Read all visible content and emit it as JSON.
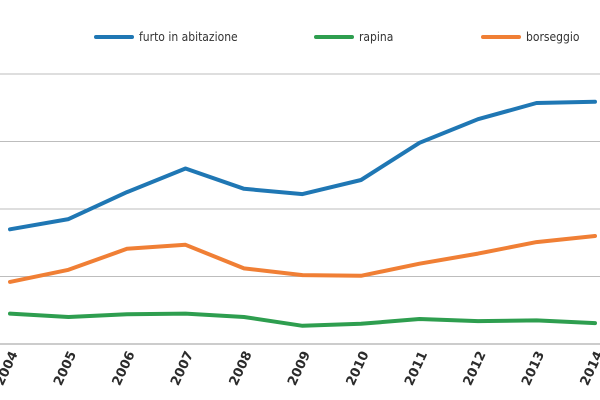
{
  "chart_data": {
    "type": "line",
    "categories": [
      "2004",
      "2005",
      "2006",
      "2007",
      "2008",
      "2009",
      "2010",
      "2011",
      "2012",
      "2013",
      "2014"
    ],
    "ylim": [
      0,
      6
    ],
    "grid": true,
    "legend": "top",
    "series": [
      {
        "name": "furto in abitazione",
        "color": "#1f77b4",
        "values": [
          1.7,
          1.85,
          2.25,
          2.6,
          2.3,
          2.22,
          2.43,
          2.98,
          3.33,
          3.57,
          3.59
        ]
      },
      {
        "name": "rapina",
        "color": "#2e9e4f",
        "values": [
          0.45,
          0.4,
          0.44,
          0.45,
          0.4,
          0.27,
          0.3,
          0.37,
          0.34,
          0.35,
          0.31
        ]
      },
      {
        "name": "borseggio",
        "color": "#f07f35",
        "values": [
          0.92,
          1.1,
          1.41,
          1.47,
          1.12,
          1.02,
          1.01,
          1.19,
          1.34,
          1.51,
          1.6
        ]
      }
    ]
  }
}
